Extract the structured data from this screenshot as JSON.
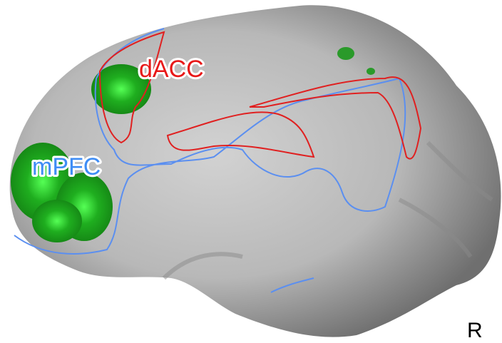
{
  "regions": [
    "dACC",
    "mPFC"
  ],
  "hemisphere": "R"
}
